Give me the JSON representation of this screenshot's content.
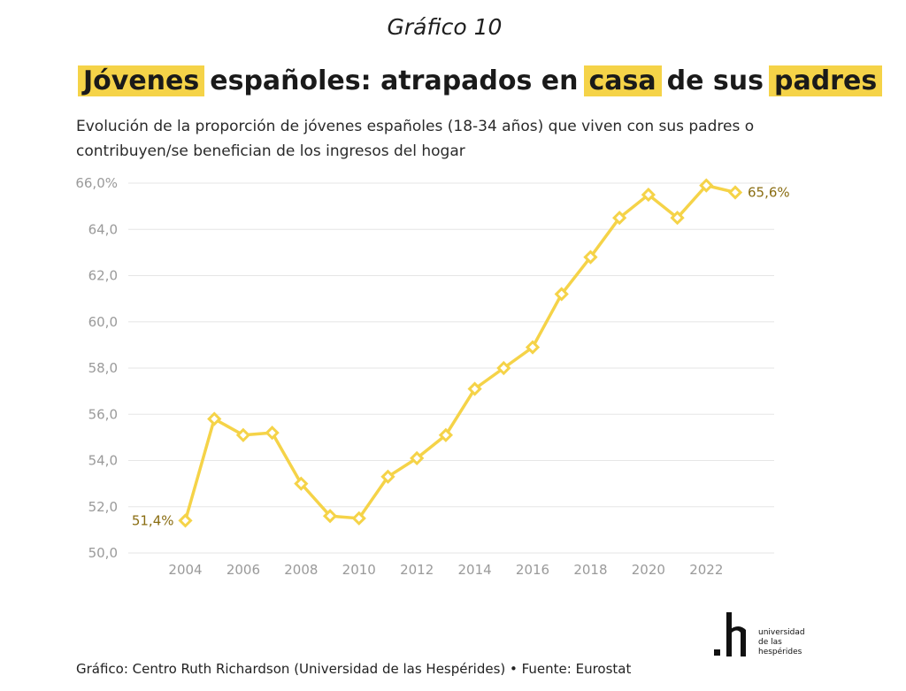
{
  "header": {
    "kicker": "Gráfico 10",
    "title_parts": [
      "Jóvenes",
      "españoles: atrapados en",
      "casa",
      "de sus",
      "padres"
    ],
    "subtitle": "Evolución de la proporción de jóvenes españoles (18-34 años) que viven con sus padres o contribuyen/se benefician de los ingresos del hogar"
  },
  "chart_data": {
    "type": "line",
    "x": [
      2004,
      2005,
      2006,
      2007,
      2008,
      2009,
      2010,
      2011,
      2012,
      2013,
      2014,
      2015,
      2016,
      2017,
      2018,
      2019,
      2020,
      2021,
      2022,
      2023
    ],
    "series": [
      {
        "values": [
          51.4,
          55.8,
          55.1,
          55.2,
          53.0,
          51.6,
          51.5,
          53.3,
          54.1,
          55.1,
          57.1,
          58.0,
          58.9,
          61.2,
          62.8,
          64.5,
          65.5,
          64.5,
          65.9,
          65.6
        ]
      }
    ],
    "ylim": [
      50,
      66
    ],
    "y_ticks": [
      50,
      52,
      54,
      56,
      58,
      60,
      62,
      64,
      66
    ],
    "y_tick_labels": [
      "50,0",
      "52,0",
      "54,0",
      "56,0",
      "58,0",
      "60,0",
      "62,0",
      "64,0",
      "66,0%"
    ],
    "x_ticks": [
      2004,
      2006,
      2008,
      2010,
      2012,
      2014,
      2016,
      2018,
      2020,
      2022
    ],
    "x_tick_labels": [
      "2004",
      "2006",
      "2008",
      "2010",
      "2012",
      "2014",
      "2016",
      "2018",
      "2020",
      "2022"
    ],
    "annotations": [
      {
        "x": 2004,
        "text": "51,4%",
        "side": "left"
      },
      {
        "x": 2023,
        "text": "65,6%",
        "side": "right"
      }
    ],
    "grid": true,
    "line_color": "#f5d348",
    "label_color": "#8a6d12",
    "xlabel": "",
    "ylabel": ""
  },
  "footer": {
    "source": "Gráfico: Centro Ruth Richardson (Universidad de las Hespérides) • Fuente: Eurostat"
  },
  "logo": {
    "lines": [
      "universidad",
      "de las",
      "hespérides"
    ]
  },
  "colors": {
    "highlight": "#f5d348",
    "line": "#f5d348",
    "grid": "#e6e6e6",
    "tick": "#9a9a9a"
  }
}
